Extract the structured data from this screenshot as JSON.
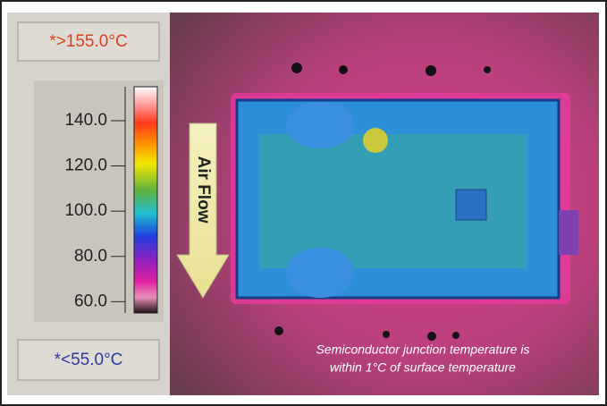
{
  "scale": {
    "max_label": "*>155.0°C",
    "min_label": "*<55.0°C",
    "ylim": [
      55,
      155
    ],
    "yticks": [
      {
        "value": 60,
        "label": "60.0"
      },
      {
        "value": 80,
        "label": "80.0"
      },
      {
        "value": 100,
        "label": "100.0"
      },
      {
        "value": 120,
        "label": "120.0"
      },
      {
        "value": 140,
        "label": "140.0"
      }
    ]
  },
  "image": {
    "arrow_label": "Air Flow",
    "caption": [
      "Semiconductor junction temperature is",
      "within 1°C of surface temperature"
    ]
  }
}
